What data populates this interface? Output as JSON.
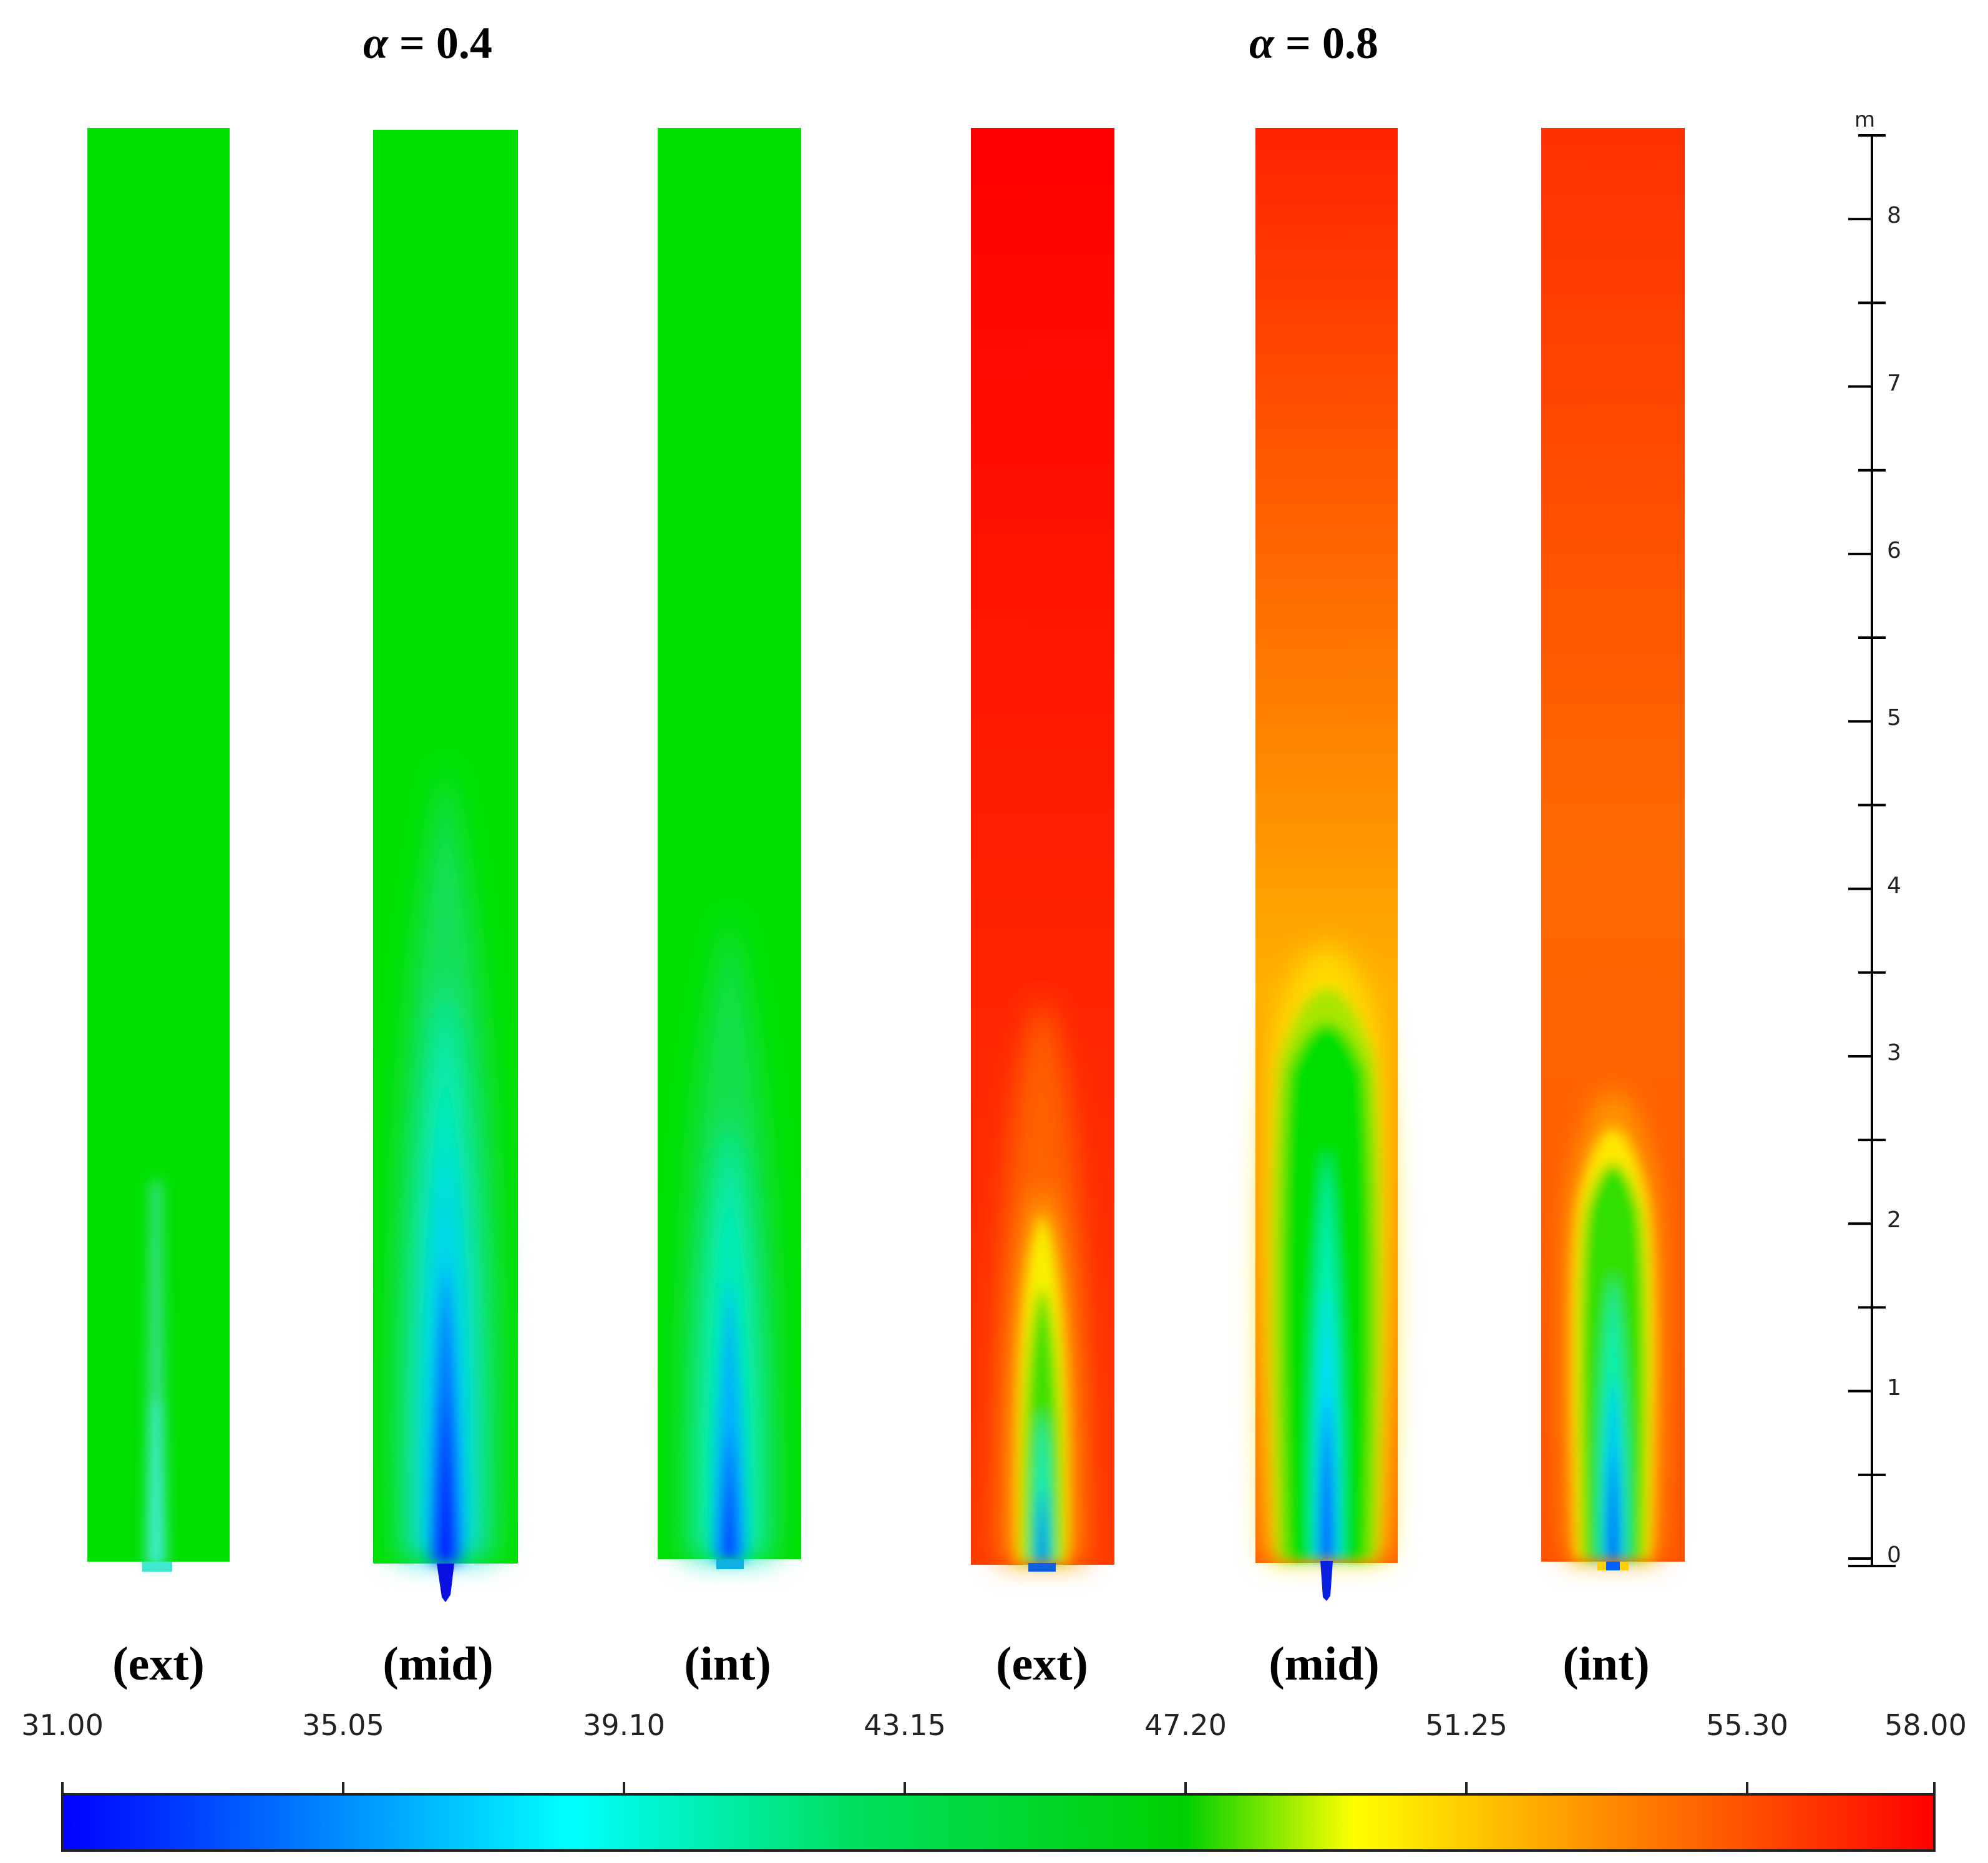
{
  "titles": [
    {
      "symbol": "α",
      "rest": " = 0.4"
    },
    {
      "symbol": "α",
      "rest": " = 0.8"
    }
  ],
  "panels": [
    {
      "label": "(ext)",
      "alpha": 0.4,
      "variant": "ext"
    },
    {
      "label": "(mid)",
      "alpha": 0.4,
      "variant": "mid"
    },
    {
      "label": "(int)",
      "alpha": 0.4,
      "variant": "int"
    },
    {
      "label": "(ext)",
      "alpha": 0.8,
      "variant": "ext"
    },
    {
      "label": "(mid)",
      "alpha": 0.8,
      "variant": "mid"
    },
    {
      "label": "(int)",
      "alpha": 0.8,
      "variant": "int"
    }
  ],
  "scale": {
    "unit": "m",
    "labels": [
      "0",
      "1",
      "2",
      "3",
      "4",
      "5",
      "6",
      "7",
      "8"
    ],
    "min": 0,
    "max": 8.5
  },
  "colorbar": {
    "min": 31.0,
    "max": 58.0,
    "ticks": [
      "31.00",
      "35.05",
      "39.10",
      "43.15",
      "47.20",
      "51.25",
      "55.30",
      "58.00"
    ],
    "colors": {
      "low": "#0000ff",
      "cyan": "#00ffff",
      "green": "#00e000",
      "yellow": "#ffff00",
      "orange": "#ff8800",
      "high": "#ff0000"
    }
  }
}
